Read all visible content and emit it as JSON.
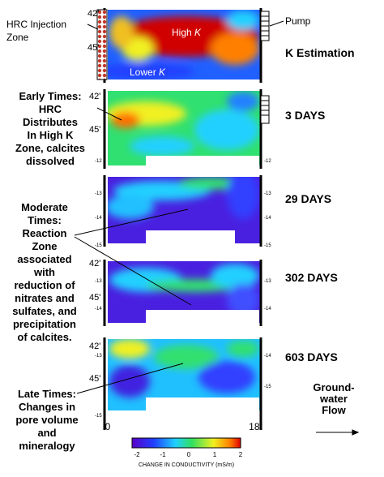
{
  "panel_1": {
    "injection_zone": [
      "HRC Injection",
      "Zone"
    ],
    "pump": "Pump",
    "high_k": [
      "High",
      "K"
    ],
    "lower_k": [
      "Lower",
      "K"
    ],
    "title": "K Estimation",
    "depths": [
      "42'",
      "45'"
    ]
  },
  "panel_2": {
    "caption": [
      "Early Times:",
      "HRC",
      "Distributes",
      "In High K",
      "Zone, calcites",
      "dissolved"
    ],
    "title": "3 DAYS",
    "depths": [
      "42'",
      "45'"
    ],
    "marks": [
      "-12",
      "-12"
    ]
  },
  "panel_3": {
    "title": "29 DAYS",
    "marks": [
      "-13",
      "-14",
      "-15",
      "-13",
      "-14",
      "-15"
    ]
  },
  "moderate": {
    "caption": [
      "Moderate",
      "Times:",
      "Reaction",
      "Zone",
      "associated",
      "with",
      "reduction of",
      "nitrates and",
      "sulfates, and",
      "precipitation",
      "of calcites."
    ]
  },
  "panel_4": {
    "title": "302 DAYS",
    "depths": [
      "42'",
      "45'"
    ],
    "marks": [
      "-13",
      "-14",
      "-13",
      "-14"
    ]
  },
  "panel_5": {
    "title": "603 DAYS",
    "depths": [
      "42'",
      "45'"
    ],
    "marks": [
      "-13",
      "-14",
      "-15",
      "-15"
    ]
  },
  "late": {
    "caption": [
      "Late Times:",
      "Changes in",
      "pore volume",
      "and",
      "mineralogy"
    ]
  },
  "axis": {
    "start": "0",
    "end": "18'"
  },
  "flow": [
    "Ground-",
    "water",
    "Flow"
  ],
  "colorbar": {
    "ticks": [
      "-2",
      "-1",
      "0",
      "1",
      "2"
    ],
    "label": "CHANGE IN CONDUCTIVITY (mS/m)"
  }
}
